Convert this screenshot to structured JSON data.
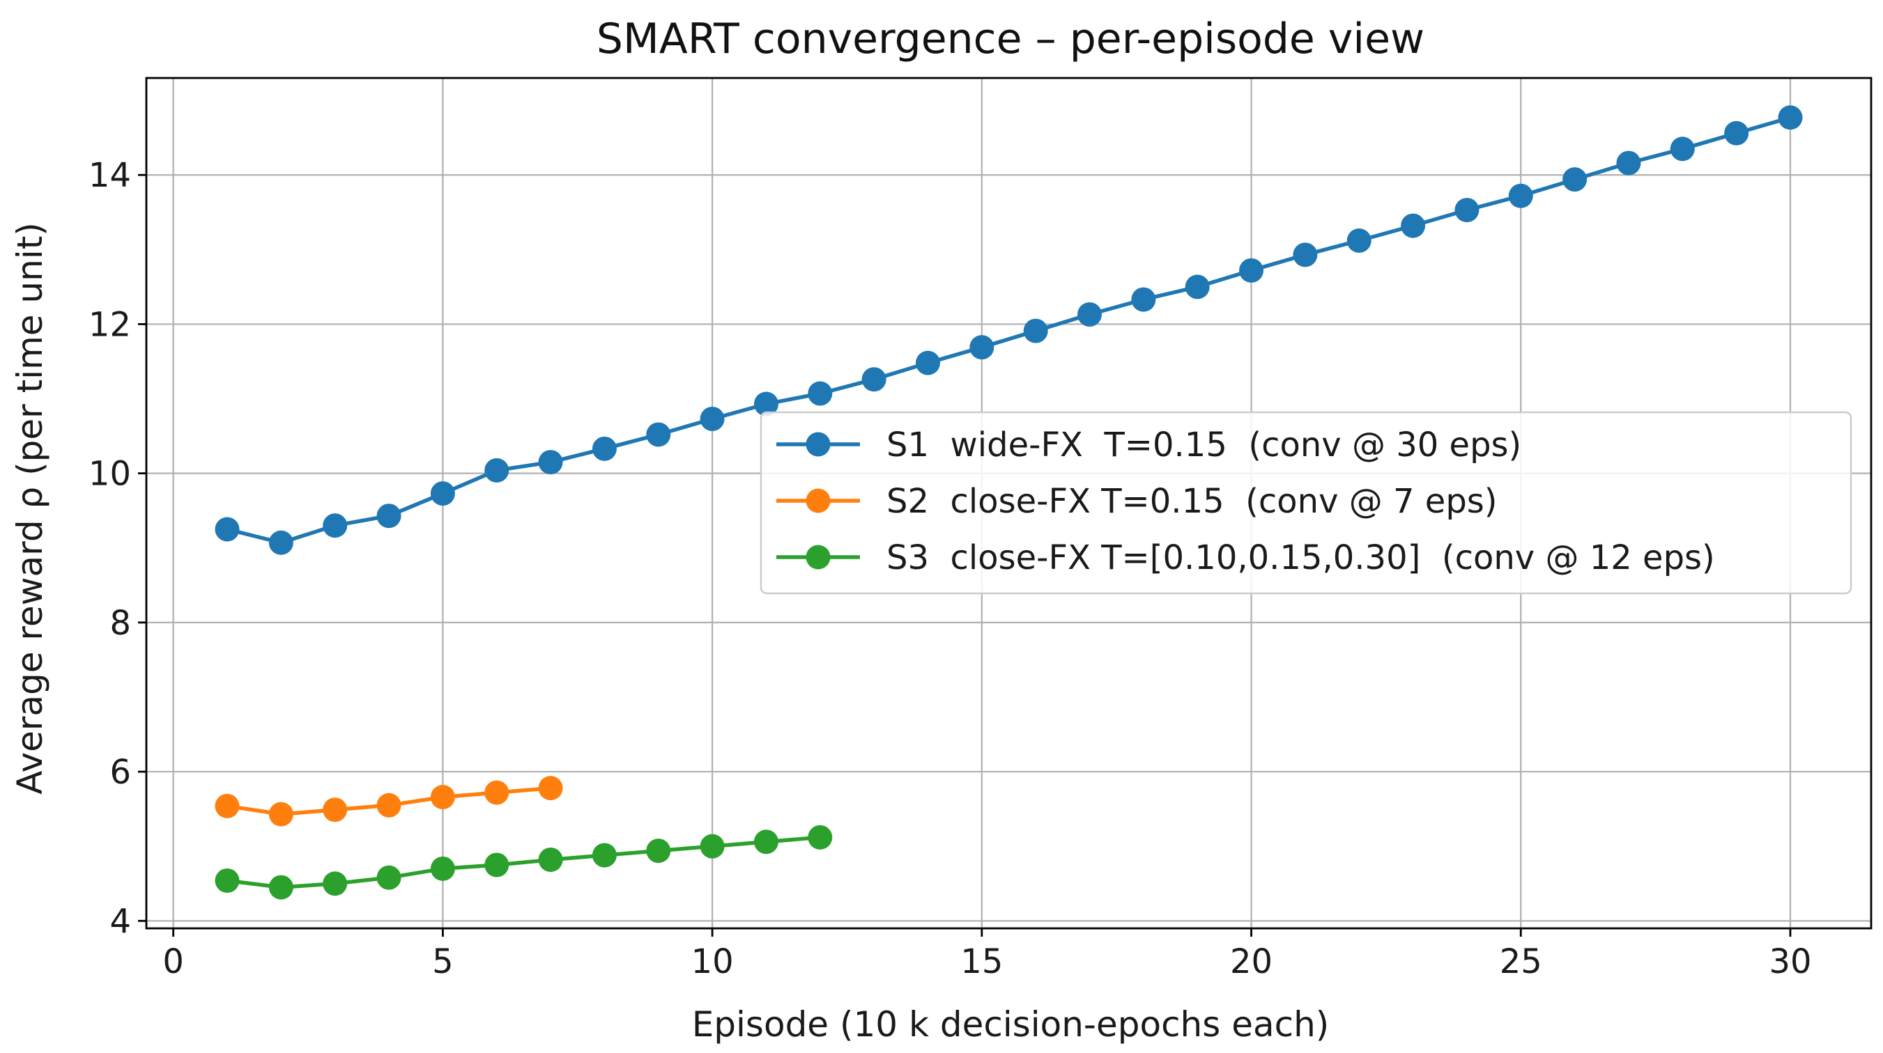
{
  "chart_data": {
    "type": "line",
    "title": "SMART convergence – per-episode view",
    "xlabel": "Episode (10 k decision-epochs each)",
    "ylabel": "Average reward ρ (per time unit)",
    "xlim": [
      -0.5,
      31.5
    ],
    "ylim": [
      3.9,
      15.3
    ],
    "xticks": [
      0,
      5,
      10,
      15,
      20,
      25,
      30
    ],
    "yticks": [
      4,
      6,
      8,
      10,
      12,
      14
    ],
    "grid": true,
    "legend_position": "center-right",
    "series": [
      {
        "name": "S1  wide-FX  T=0.15  (conv @ 30 eps)",
        "color": "#1f77b4",
        "x": [
          1,
          2,
          3,
          4,
          5,
          6,
          7,
          8,
          9,
          10,
          11,
          12,
          13,
          14,
          15,
          16,
          17,
          18,
          19,
          20,
          21,
          22,
          23,
          24,
          25,
          26,
          27,
          28,
          29,
          30
        ],
        "values": [
          9.25,
          9.07,
          9.3,
          9.43,
          9.73,
          10.04,
          10.15,
          10.33,
          10.52,
          10.73,
          10.93,
          11.07,
          11.26,
          11.48,
          11.69,
          11.91,
          12.13,
          12.33,
          12.5,
          12.72,
          12.93,
          13.12,
          13.32,
          13.53,
          13.72,
          13.94,
          14.16,
          14.35,
          14.56,
          14.77
        ]
      },
      {
        "name": "S2  close-FX T=0.15  (conv @ 7 eps)",
        "color": "#ff7f0e",
        "x": [
          1,
          2,
          3,
          4,
          5,
          6,
          7
        ],
        "values": [
          5.54,
          5.43,
          5.49,
          5.55,
          5.66,
          5.72,
          5.78
        ]
      },
      {
        "name": "S3  close-FX T=[0.10,0.15,0.30]  (conv @ 12 eps)",
        "color": "#2ca02c",
        "x": [
          1,
          2,
          3,
          4,
          5,
          6,
          7,
          8,
          9,
          10,
          11,
          12
        ],
        "values": [
          4.54,
          4.45,
          4.5,
          4.58,
          4.7,
          4.75,
          4.82,
          4.88,
          4.94,
          5.0,
          5.06,
          5.12
        ]
      }
    ]
  }
}
